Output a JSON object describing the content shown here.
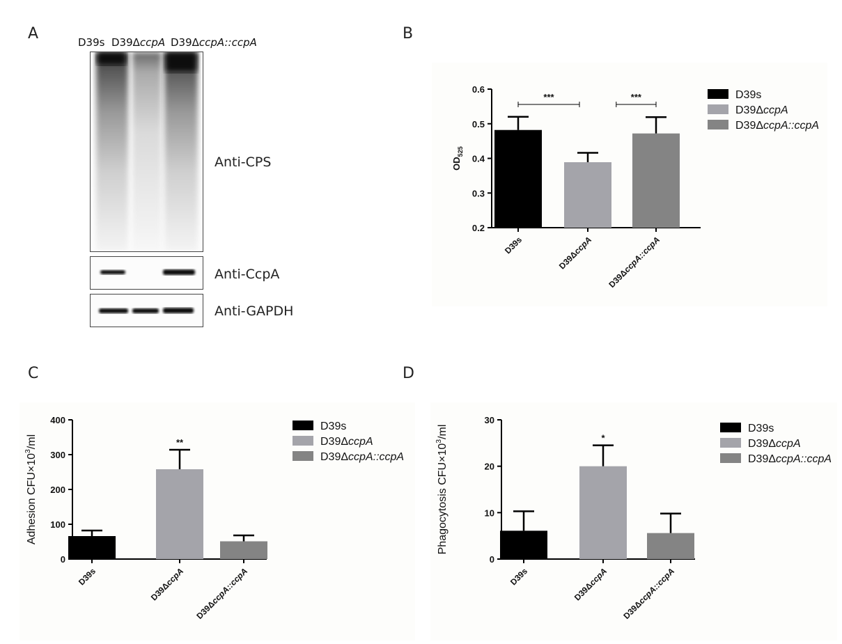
{
  "panels": {
    "a": {
      "letter": "A",
      "lanes": [
        {
          "base": "D39s",
          "italic": ""
        },
        {
          "base": "D39Δ",
          "italic": "ccpA"
        },
        {
          "base": "D39Δ",
          "italic": "ccpA::ccpA"
        }
      ],
      "blots": {
        "cps": "Anti-CPS",
        "ccpa": "Anti-CcpA",
        "gapdh": "Anti-GAPDH"
      }
    },
    "b": {
      "letter": "B"
    },
    "c": {
      "letter": "C"
    },
    "d": {
      "letter": "D"
    }
  },
  "colors": {
    "black_bar": "#000000",
    "light_bar": "#a4a4aa",
    "mid_bar": "#848484",
    "panel_bg": "#fdfdfb"
  },
  "chart_data": [
    {
      "type": "bar",
      "panel": "B",
      "categories": [
        {
          "base": "D39s",
          "italic": ""
        },
        {
          "base": "D39Δ",
          "italic": "ccpA"
        },
        {
          "base": "D39Δ",
          "italic": "ccpA::ccpA"
        }
      ],
      "values": [
        0.482,
        0.389,
        0.472
      ],
      "errors": [
        0.038,
        0.027,
        0.047
      ],
      "ylabel": {
        "base": "OD",
        "sub": "525"
      },
      "ylim": [
        0.2,
        0.6
      ],
      "yticks": [
        "0.2",
        "0.3",
        "0.4",
        "0.5",
        "0.6"
      ],
      "significance": [
        {
          "from": 0,
          "to": 1,
          "label": "***"
        },
        {
          "from": 1,
          "to": 2,
          "label": "***"
        }
      ],
      "legend": [
        "D39s",
        "D39ΔccpA",
        "D39ΔccpA::ccpA"
      ],
      "legend_position": "right"
    },
    {
      "type": "bar",
      "panel": "C",
      "categories": [
        {
          "base": "D39s",
          "italic": ""
        },
        {
          "base": "D39Δ",
          "italic": "ccpA"
        },
        {
          "base": "D39Δ",
          "italic": "ccpA::ccpA"
        }
      ],
      "values": [
        66,
        258,
        51
      ],
      "errors": [
        16,
        56,
        17
      ],
      "ylabel": {
        "base": "Adhesion CFU×10",
        "sup": "3",
        "tail": "/ml"
      },
      "ylim": [
        0,
        400
      ],
      "yticks": [
        "0",
        "100",
        "200",
        "300",
        "400"
      ],
      "annotations": [
        {
          "bar": 1,
          "label": "**"
        }
      ],
      "legend": [
        "D39s",
        "D39ΔccpA",
        "D39ΔccpA::ccpA"
      ],
      "legend_position": "right"
    },
    {
      "type": "bar",
      "panel": "D",
      "categories": [
        {
          "base": "D39s",
          "italic": ""
        },
        {
          "base": "D39Δ",
          "italic": "ccpA"
        },
        {
          "base": "D39Δ",
          "italic": "ccpA::ccpA"
        }
      ],
      "values": [
        6.1,
        20.0,
        5.6
      ],
      "errors": [
        4.2,
        4.5,
        4.2
      ],
      "ylabel": {
        "base": "Phagocytosis CFU×10",
        "sup": "3",
        "tail": "/ml"
      },
      "ylim": [
        0,
        30
      ],
      "yticks": [
        "0",
        "10",
        "20",
        "30"
      ],
      "annotations": [
        {
          "bar": 1,
          "label": "*"
        }
      ],
      "legend": [
        "D39s",
        "D39ΔccpA",
        "D39ΔccpA::ccpA"
      ],
      "legend_position": "right"
    }
  ]
}
